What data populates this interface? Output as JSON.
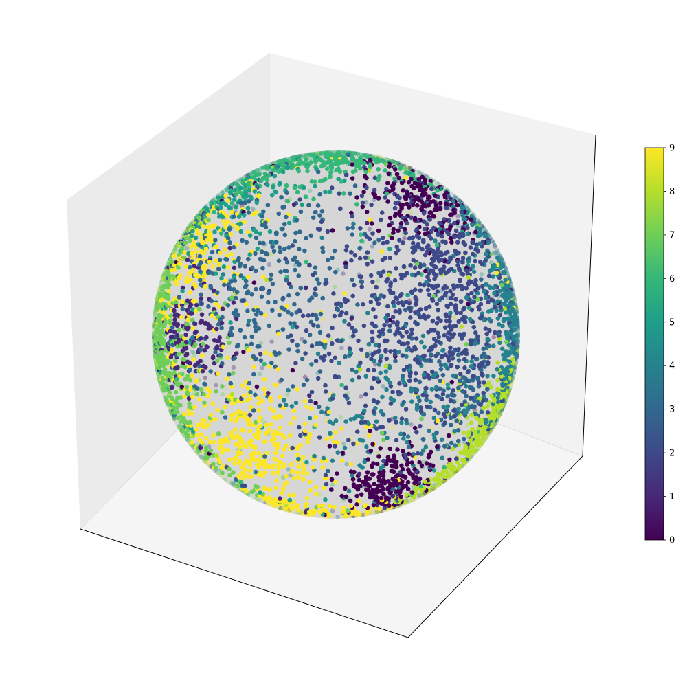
{
  "chart_data": {
    "type": "scatter",
    "projection": "3d",
    "title": "",
    "xlabel": "",
    "ylabel": "",
    "zlabel": "",
    "axes_ticks_visible": false,
    "grid": false,
    "shape": "unit sphere surface",
    "colormap": "viridis",
    "points_shown": "approximately 10000 points on a sphere, colored by class 0-9",
    "cluster_layout": [
      {
        "class": 0,
        "region": "upper right and lower center-right patches"
      },
      {
        "class": 2,
        "region": "right-center hemisphere (dense)"
      },
      {
        "class": 4,
        "region": "right rim and scattered faint points"
      },
      {
        "class": 6,
        "region": "top rim"
      },
      {
        "class": 7,
        "region": "left rim"
      },
      {
        "class": 8,
        "region": "lower right rim"
      },
      {
        "class": 9,
        "region": "lower left area and upper left"
      }
    ],
    "colorbar": {
      "min": 0,
      "max": 9,
      "ticks": [
        "0",
        "1",
        "2",
        "3",
        "4",
        "5",
        "6",
        "7",
        "8",
        "9"
      ],
      "location": "right"
    },
    "colors": {
      "sphere_backdrop": "#d6d6d6",
      "pane_left": "#ebebeb",
      "pane_right": "#f2f2f2",
      "pane_floor": "#f5f5f5",
      "axis_line": "#000000"
    }
  }
}
